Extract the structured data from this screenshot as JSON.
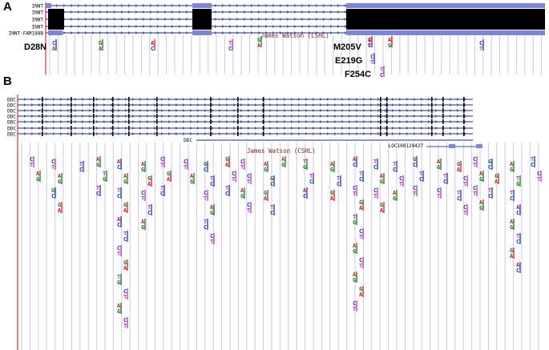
{
  "panels": {
    "A": {
      "label": "A",
      "tracks": [
        "INNT",
        "INNT",
        "INNT",
        "INNT",
        "INNT-FAM188B"
      ],
      "annotation": "James Watson (CSHL)",
      "mutations": [
        "D28N",
        "M205V",
        "E219G",
        "F254C"
      ]
    },
    "B": {
      "label": "B",
      "tracks": [
        "DDC",
        "DDC",
        "DDC",
        "DDC",
        "DDC",
        "DDC",
        "DDC"
      ],
      "gene_labels": [
        "DDC",
        "LOC100129427"
      ],
      "annotation": "James Watson (CSHL)"
    }
  },
  "colors": {
    "A": "#d62020",
    "C": "#2030c8",
    "G": "#1a7a1a",
    "T": "#c030c0",
    "grid": "#c8c8f0",
    "exon": "#000000",
    "utr": "#7b86d8",
    "marker": "#e03030"
  },
  "variants_A": [
    {
      "c": 0,
      "b": [
        "C",
        "A"
      ]
    },
    {
      "c": 1,
      "b": [
        "G",
        "A"
      ]
    },
    {
      "c": 2,
      "b": [
        "A",
        "C"
      ]
    },
    {
      "c": 3,
      "b": [
        "T",
        "C"
      ]
    },
    {
      "c": 4,
      "b": [
        "G",
        "A"
      ]
    },
    {
      "c": 5,
      "b": [
        "C",
        "T"
      ]
    },
    {
      "c": 6,
      "b": [
        "A",
        "G"
      ]
    },
    {
      "c": 7,
      "b": [
        "C",
        "T"
      ]
    },
    {
      "c": 8,
      "b": [
        "C",
        "T"
      ]
    },
    {
      "c": 9,
      "b": [
        "A",
        "C"
      ]
    },
    {
      "c": 10,
      "b": [
        "T",
        "C"
      ]
    }
  ],
  "variants_B": [
    {
      "c": 0,
      "b": [
        "C",
        "T"
      ]
    },
    {
      "c": 1,
      "b": [
        "A",
        "G"
      ]
    },
    {
      "c": 2,
      "b": [
        "C",
        "T"
      ]
    },
    {
      "c": 3,
      "b": [
        "A",
        "G"
      ]
    },
    {
      "c": 4,
      "b": [
        "G",
        "C"
      ]
    },
    {
      "c": 5,
      "b": [
        "G",
        "A"
      ]
    },
    {
      "c": 6,
      "b": [
        "T",
        "C"
      ]
    },
    {
      "c": 7,
      "b": [
        "A",
        "G"
      ]
    },
    {
      "c": 8,
      "b": [
        "T",
        "G"
      ]
    },
    {
      "c": 9,
      "b": [
        "T",
        "C"
      ]
    },
    {
      "c": 10,
      "b": [
        "A",
        "C"
      ]
    },
    {
      "c": 11,
      "b": [
        "A",
        "G"
      ]
    },
    {
      "c": 12,
      "b": [
        "T",
        "C"
      ]
    },
    {
      "c": 13,
      "b": [
        "G",
        "A"
      ]
    },
    {
      "c": 14,
      "b": [
        "A",
        "C"
      ]
    },
    {
      "c": 15,
      "b": [
        "T",
        "C"
      ]
    },
    {
      "c": 16,
      "b": [
        "C",
        "T"
      ]
    },
    {
      "c": 17,
      "b": [
        "G",
        "A"
      ]
    },
    {
      "c": 18,
      "b": [
        "T",
        "G"
      ]
    },
    {
      "c": 19,
      "b": [
        "C",
        "T"
      ]
    },
    {
      "c": 20,
      "b": [
        "A",
        "G"
      ]
    },
    {
      "c": 21,
      "b": [
        "C",
        "T"
      ]
    },
    {
      "c": 22,
      "b": [
        "A",
        "G"
      ]
    },
    {
      "c": 23,
      "b": [
        "G",
        "A"
      ]
    },
    {
      "c": 24,
      "b": [
        "C",
        "T"
      ]
    },
    {
      "c": 25,
      "b": [
        "T",
        "C"
      ]
    },
    {
      "c": 26,
      "b": [
        "A",
        "G"
      ]
    },
    {
      "c": 27,
      "b": [
        "C",
        "T"
      ]
    },
    {
      "c": 28,
      "b": [
        "G",
        "A"
      ]
    },
    {
      "c": 29,
      "b": [
        "T",
        "C"
      ]
    },
    {
      "c": 30,
      "b": [
        "C",
        "T"
      ]
    },
    {
      "c": 31,
      "b": [
        "A",
        "G"
      ]
    },
    {
      "c": 32,
      "b": [
        "G",
        "C"
      ]
    },
    {
      "c": 33,
      "b": [
        "T",
        "C"
      ]
    },
    {
      "c": 34,
      "b": [
        "C",
        "T"
      ]
    },
    {
      "c": 35,
      "b": [
        "A",
        "G"
      ]
    },
    {
      "c": 36,
      "b": [
        "T",
        "C"
      ]
    },
    {
      "c": 37,
      "b": [
        "C",
        "T"
      ]
    },
    {
      "c": 38,
      "b": [
        "G",
        "A"
      ]
    },
    {
      "c": 39,
      "b": [
        "C",
        "T"
      ]
    },
    {
      "c": 40,
      "b": [
        "T",
        "C"
      ]
    },
    {
      "c": 41,
      "b": [
        "C",
        "T"
      ]
    }
  ]
}
